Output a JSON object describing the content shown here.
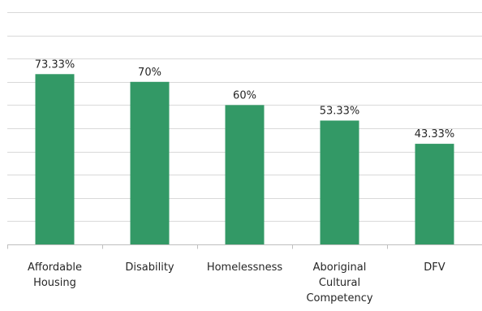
{
  "chart_data": {
    "type": "bar",
    "categories": [
      [
        "Affordable",
        "Housing"
      ],
      [
        "Disability"
      ],
      [
        "Homelessness"
      ],
      [
        "Aboriginal",
        "Cultural",
        "Competency"
      ],
      [
        "DFV"
      ]
    ],
    "values": [
      73.33,
      70,
      60,
      53.33,
      43.33
    ],
    "data_labels": [
      "73.33%",
      "70%",
      "60%",
      "53.33%",
      "43.33%"
    ],
    "ylim": [
      0,
      100
    ],
    "grid": true,
    "legend": "none",
    "colors": {
      "bar": "#339966"
    }
  }
}
